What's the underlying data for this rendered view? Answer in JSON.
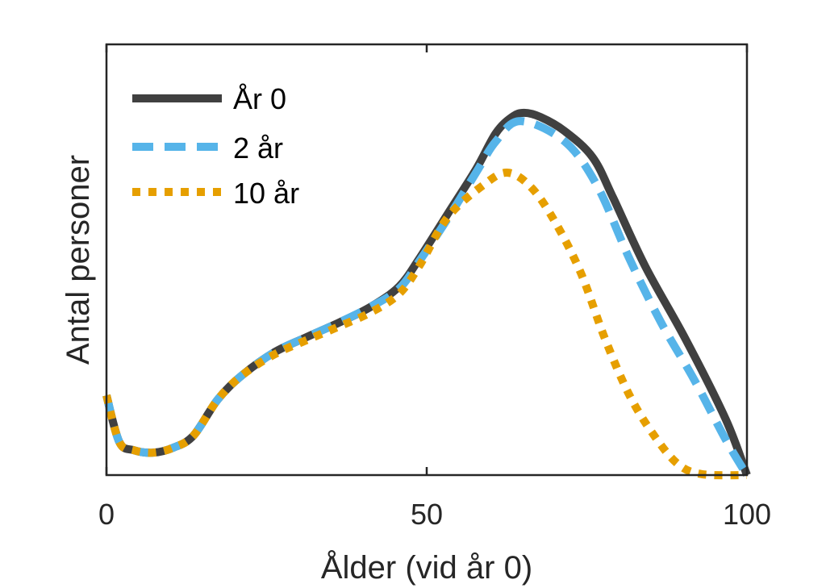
{
  "chart_data": {
    "type": "line",
    "title": "",
    "xlabel": "Ålder (vid år 0)",
    "ylabel": "Antal personer",
    "xlim": [
      0,
      100
    ],
    "ylim": [
      0,
      100
    ],
    "xticks": [
      0,
      50,
      100
    ],
    "xtick_labels": [
      "0",
      "50",
      "100"
    ],
    "yticks": [],
    "grid": false,
    "legend_position": "top-left",
    "series": [
      {
        "name": "År 0",
        "color": "#404040",
        "style": "solid",
        "x": [
          0,
          2,
          4.2,
          7.3,
          10.5,
          13.6,
          17.4,
          21.2,
          26.2,
          31.2,
          36.3,
          41.3,
          45.7,
          48.9,
          53.3,
          57.7,
          60.8,
          63.3,
          65.2,
          67.8,
          71.5,
          75.9,
          79.1,
          84.1,
          90.4,
          96.7,
          100
        ],
        "y": [
          18.5,
          7.7,
          5.8,
          5.2,
          6.4,
          9.2,
          17.6,
          23.2,
          28.5,
          32.0,
          35.4,
          39.1,
          43.8,
          50.4,
          60.7,
          71.0,
          79.4,
          83.1,
          84.1,
          83.1,
          79.9,
          73.8,
          64.4,
          48.5,
          31.6,
          12.9,
          0
        ]
      },
      {
        "name": "2 år",
        "color": "#56B4E9",
        "style": "dashed",
        "x": [
          0,
          2,
          4.2,
          7.3,
          10.5,
          13.6,
          17.4,
          21.2,
          26.2,
          31.2,
          36.3,
          41.3,
          45.7,
          48.9,
          53.3,
          57.7,
          60.8,
          64.6,
          71.5,
          76.6,
          81.6,
          86.6,
          91.7,
          96.7,
          100
        ],
        "y": [
          18.5,
          7.7,
          5.8,
          5.2,
          6.4,
          9.2,
          17.6,
          23.2,
          28.5,
          32.0,
          35.4,
          39.1,
          43.3,
          49.8,
          59.6,
          70.2,
          77.5,
          82.2,
          77.5,
          67.2,
          50.4,
          35.4,
          22.3,
          8.2,
          0
        ]
      },
      {
        "name": "10 år",
        "color": "#E69F00",
        "style": "dotted",
        "x": [
          0,
          2,
          4.2,
          7.3,
          10.5,
          13.6,
          17.4,
          21.2,
          26.2,
          31.2,
          36.3,
          41.3,
          45.7,
          48.9,
          53.3,
          58.9,
          62.7,
          66.5,
          70.3,
          74.1,
          77.8,
          81.6,
          85.4,
          89.2,
          93.0,
          100
        ],
        "y": [
          18.5,
          7.7,
          5.8,
          5.2,
          6.4,
          9.2,
          17.6,
          23.2,
          28.0,
          31.3,
          34.5,
          37.8,
          42.1,
          48.7,
          59.9,
          67.4,
          70.2,
          66.5,
          58.1,
          46.8,
          31.8,
          18.7,
          9.4,
          2.6,
          0.2,
          0
        ]
      }
    ]
  }
}
